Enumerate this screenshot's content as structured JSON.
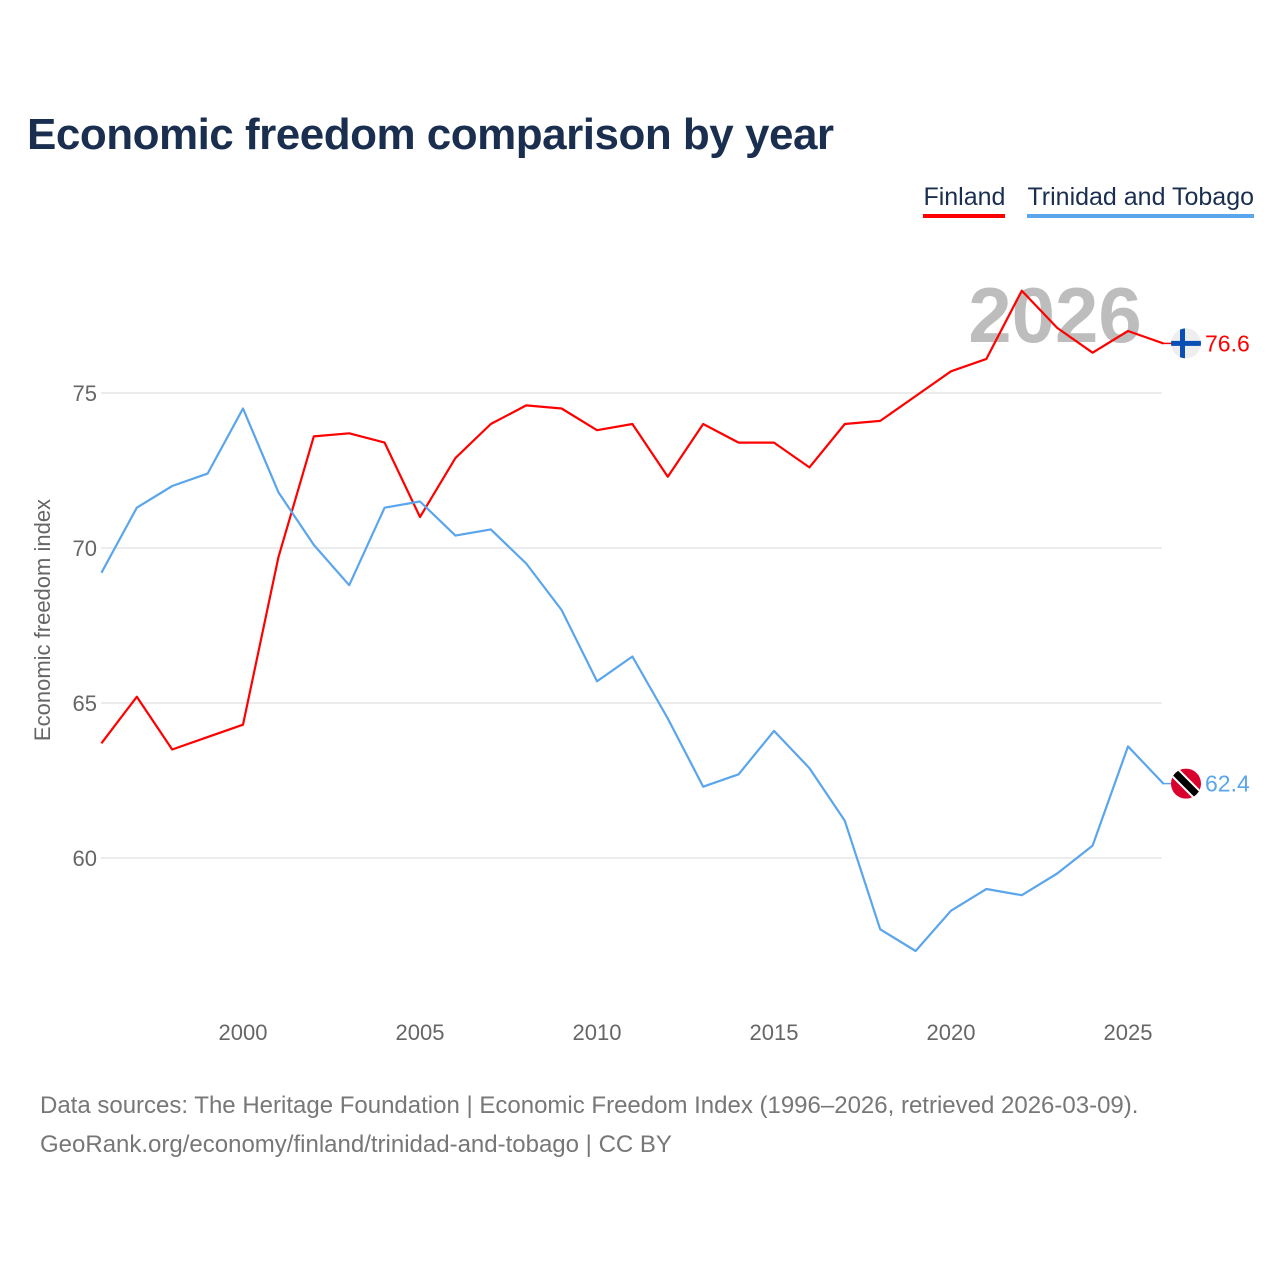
{
  "title": "Economic freedom comparison by year",
  "chart_data": {
    "type": "line",
    "title": "Economic freedom comparison by year",
    "xlabel": "",
    "ylabel": "Economic freedom index",
    "x": [
      1996,
      1997,
      1998,
      1999,
      2000,
      2001,
      2002,
      2003,
      2004,
      2005,
      2006,
      2007,
      2008,
      2009,
      2010,
      2011,
      2012,
      2013,
      2014,
      2015,
      2016,
      2017,
      2018,
      2019,
      2020,
      2021,
      2022,
      2023,
      2024,
      2025,
      2026
    ],
    "xlim": [
      1996,
      2026
    ],
    "ylim": [
      55,
      80
    ],
    "xticks": [
      "2000",
      "2005",
      "2010",
      "2015",
      "2020",
      "2025"
    ],
    "yticks": [
      "60",
      "65",
      "70",
      "75"
    ],
    "grid": true,
    "legend_position": "top-right",
    "watermark_year": "2026",
    "series": [
      {
        "name": "Finland",
        "color": "#ff0000",
        "end_label": "76.6",
        "flag": "finland-flag-icon",
        "values": [
          63.7,
          65.2,
          63.5,
          63.9,
          64.3,
          69.7,
          73.6,
          73.7,
          73.4,
          71.0,
          72.9,
          74.0,
          74.6,
          74.5,
          73.8,
          74.0,
          72.3,
          74.0,
          73.4,
          73.4,
          72.6,
          74.0,
          74.1,
          74.9,
          75.7,
          76.1,
          78.3,
          77.1,
          76.3,
          77.0,
          76.6
        ]
      },
      {
        "name": "Trinidad and Tobago",
        "color": "#5aa5eb",
        "end_label": "62.4",
        "flag": "trinidad-flag-icon",
        "values": [
          69.2,
          71.3,
          72.0,
          72.4,
          74.5,
          71.8,
          70.1,
          68.8,
          71.3,
          71.5,
          70.4,
          70.6,
          69.5,
          68.0,
          65.7,
          66.5,
          64.5,
          62.3,
          62.7,
          64.1,
          62.9,
          61.2,
          57.7,
          57.0,
          58.3,
          59.0,
          58.8,
          59.5,
          60.4,
          63.6,
          62.4
        ]
      }
    ]
  },
  "source_line1": "Data sources: The Heritage Foundation | Economic Freedom Index (1996–2026, retrieved 2026-03-09).",
  "source_line2": "GeoRank.org/economy/finland/trinidad-and-tobago | CC BY"
}
